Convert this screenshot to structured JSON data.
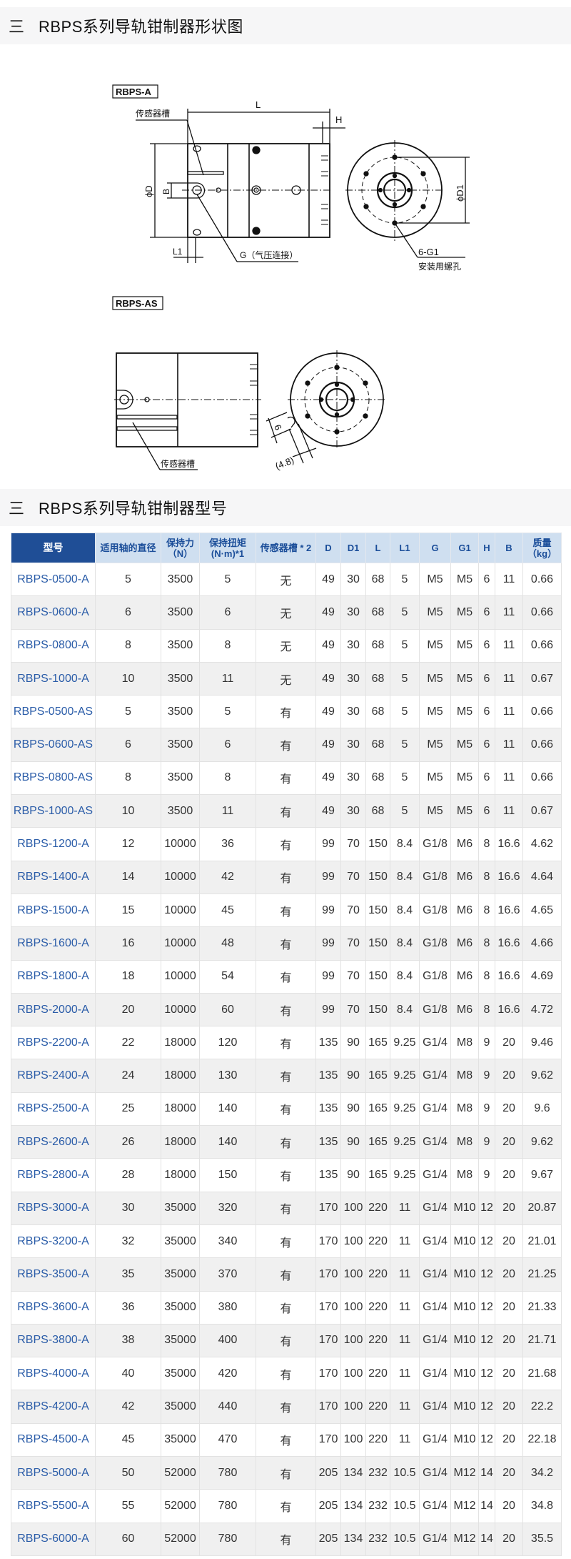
{
  "sections": {
    "drawing_title": "RBPS系列导轨钳制器形状图",
    "model_title": "RBPS系列导轨钳制器型号",
    "menu_icon": "三"
  },
  "drawing": {
    "a": {
      "label": "RBPS-A",
      "sensor_slot": "传感器槽",
      "dim_L": "L",
      "dim_H": "H",
      "dim_D": "ϕD",
      "dim_B": "B",
      "dim_L1": "L1",
      "port_G": "G（气压连接）",
      "dim_D1": "ϕD1",
      "holes": "6-G1",
      "holes_note": "安装用螺孔"
    },
    "as": {
      "label": "RBPS-AS",
      "sensor_slot": "传感器槽",
      "dim_6": "6",
      "dim_48": "(4.8)"
    }
  },
  "table": {
    "headers": [
      "型号",
      "适用轴的直径",
      "保持力（N）",
      "保持扭矩(N·m)*1",
      "传感器槽 * 2",
      "D",
      "D1",
      "L",
      "L1",
      "G",
      "G1",
      "H",
      "B",
      "质量（kg）"
    ],
    "rows": [
      [
        "RBPS-0500-A",
        "5",
        "3500",
        "5",
        "无",
        "49",
        "30",
        "68",
        "5",
        "M5",
        "M5",
        "6",
        "11",
        "0.66"
      ],
      [
        "RBPS-0600-A",
        "6",
        "3500",
        "6",
        "无",
        "49",
        "30",
        "68",
        "5",
        "M5",
        "M5",
        "6",
        "11",
        "0.66"
      ],
      [
        "RBPS-0800-A",
        "8",
        "3500",
        "8",
        "无",
        "49",
        "30",
        "68",
        "5",
        "M5",
        "M5",
        "6",
        "11",
        "0.66"
      ],
      [
        "RBPS-1000-A",
        "10",
        "3500",
        "11",
        "无",
        "49",
        "30",
        "68",
        "5",
        "M5",
        "M5",
        "6",
        "11",
        "0.67"
      ],
      [
        "RBPS-0500-AS",
        "5",
        "3500",
        "5",
        "有",
        "49",
        "30",
        "68",
        "5",
        "M5",
        "M5",
        "6",
        "11",
        "0.66"
      ],
      [
        "RBPS-0600-AS",
        "6",
        "3500",
        "6",
        "有",
        "49",
        "30",
        "68",
        "5",
        "M5",
        "M5",
        "6",
        "11",
        "0.66"
      ],
      [
        "RBPS-0800-AS",
        "8",
        "3500",
        "8",
        "有",
        "49",
        "30",
        "68",
        "5",
        "M5",
        "M5",
        "6",
        "11",
        "0.66"
      ],
      [
        "RBPS-1000-AS",
        "10",
        "3500",
        "11",
        "有",
        "49",
        "30",
        "68",
        "5",
        "M5",
        "M5",
        "6",
        "11",
        "0.67"
      ],
      [
        "RBPS-1200-A",
        "12",
        "10000",
        "36",
        "有",
        "99",
        "70",
        "150",
        "8.4",
        "G1/8",
        "M6",
        "8",
        "16.6",
        "4.62"
      ],
      [
        "RBPS-1400-A",
        "14",
        "10000",
        "42",
        "有",
        "99",
        "70",
        "150",
        "8.4",
        "G1/8",
        "M6",
        "8",
        "16.6",
        "4.64"
      ],
      [
        "RBPS-1500-A",
        "15",
        "10000",
        "45",
        "有",
        "99",
        "70",
        "150",
        "8.4",
        "G1/8",
        "M6",
        "8",
        "16.6",
        "4.65"
      ],
      [
        "RBPS-1600-A",
        "16",
        "10000",
        "48",
        "有",
        "99",
        "70",
        "150",
        "8.4",
        "G1/8",
        "M6",
        "8",
        "16.6",
        "4.66"
      ],
      [
        "RBPS-1800-A",
        "18",
        "10000",
        "54",
        "有",
        "99",
        "70",
        "150",
        "8.4",
        "G1/8",
        "M6",
        "8",
        "16.6",
        "4.69"
      ],
      [
        "RBPS-2000-A",
        "20",
        "10000",
        "60",
        "有",
        "99",
        "70",
        "150",
        "8.4",
        "G1/8",
        "M6",
        "8",
        "16.6",
        "4.72"
      ],
      [
        "RBPS-2200-A",
        "22",
        "18000",
        "120",
        "有",
        "135",
        "90",
        "165",
        "9.25",
        "G1/4",
        "M8",
        "9",
        "20",
        "9.46"
      ],
      [
        "RBPS-2400-A",
        "24",
        "18000",
        "130",
        "有",
        "135",
        "90",
        "165",
        "9.25",
        "G1/4",
        "M8",
        "9",
        "20",
        "9.62"
      ],
      [
        "RBPS-2500-A",
        "25",
        "18000",
        "140",
        "有",
        "135",
        "90",
        "165",
        "9.25",
        "G1/4",
        "M8",
        "9",
        "20",
        "9.6"
      ],
      [
        "RBPS-2600-A",
        "26",
        "18000",
        "140",
        "有",
        "135",
        "90",
        "165",
        "9.25",
        "G1/4",
        "M8",
        "9",
        "20",
        "9.62"
      ],
      [
        "RBPS-2800-A",
        "28",
        "18000",
        "150",
        "有",
        "135",
        "90",
        "165",
        "9.25",
        "G1/4",
        "M8",
        "9",
        "20",
        "9.67"
      ],
      [
        "RBPS-3000-A",
        "30",
        "35000",
        "320",
        "有",
        "170",
        "100",
        "220",
        "11",
        "G1/4",
        "M10",
        "12",
        "20",
        "20.87"
      ],
      [
        "RBPS-3200-A",
        "32",
        "35000",
        "340",
        "有",
        "170",
        "100",
        "220",
        "11",
        "G1/4",
        "M10",
        "12",
        "20",
        "21.01"
      ],
      [
        "RBPS-3500-A",
        "35",
        "35000",
        "370",
        "有",
        "170",
        "100",
        "220",
        "11",
        "G1/4",
        "M10",
        "12",
        "20",
        "21.25"
      ],
      [
        "RBPS-3600-A",
        "36",
        "35000",
        "380",
        "有",
        "170",
        "100",
        "220",
        "11",
        "G1/4",
        "M10",
        "12",
        "20",
        "21.33"
      ],
      [
        "RBPS-3800-A",
        "38",
        "35000",
        "400",
        "有",
        "170",
        "100",
        "220",
        "11",
        "G1/4",
        "M10",
        "12",
        "20",
        "21.71"
      ],
      [
        "RBPS-4000-A",
        "40",
        "35000",
        "420",
        "有",
        "170",
        "100",
        "220",
        "11",
        "G1/4",
        "M10",
        "12",
        "20",
        "21.68"
      ],
      [
        "RBPS-4200-A",
        "42",
        "35000",
        "440",
        "有",
        "170",
        "100",
        "220",
        "11",
        "G1/4",
        "M10",
        "12",
        "20",
        "22.2"
      ],
      [
        "RBPS-4500-A",
        "45",
        "35000",
        "470",
        "有",
        "170",
        "100",
        "220",
        "11",
        "G1/4",
        "M10",
        "12",
        "20",
        "22.18"
      ],
      [
        "RBPS-5000-A",
        "50",
        "52000",
        "780",
        "有",
        "205",
        "134",
        "232",
        "10.5",
        "G1/4",
        "M12",
        "14",
        "20",
        "34.2"
      ],
      [
        "RBPS-5500-A",
        "55",
        "52000",
        "780",
        "有",
        "205",
        "134",
        "232",
        "10.5",
        "G1/4",
        "M12",
        "14",
        "20",
        "34.8"
      ],
      [
        "RBPS-6000-A",
        "60",
        "52000",
        "780",
        "有",
        "205",
        "134",
        "232",
        "10.5",
        "G1/4",
        "M12",
        "14",
        "20",
        "35.5"
      ]
    ]
  },
  "colors": {
    "header_dark": "#1f4e96",
    "header_light": "#cfdff0",
    "link_blue": "#2a5ca8",
    "row_alt": "#f0f0f0"
  }
}
